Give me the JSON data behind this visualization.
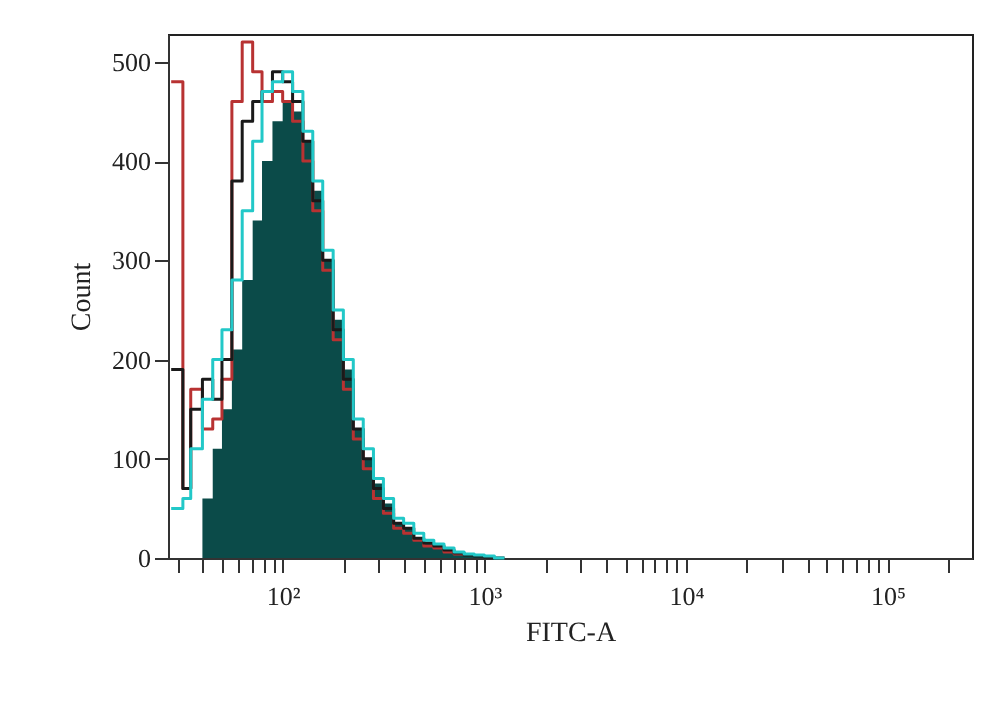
{
  "chart_data": {
    "type": "step",
    "xlabel": "FITC-A",
    "ylabel": "Count",
    "log": "x",
    "xlim": [
      27,
      262144
    ],
    "ylim": [
      0,
      528
    ],
    "xticks": [
      {
        "value": 30,
        "label": null
      },
      {
        "value": 40,
        "label": null
      },
      {
        "value": 50,
        "label": null
      },
      {
        "value": 60,
        "label": null
      },
      {
        "value": 70,
        "label": null
      },
      {
        "value": 80,
        "label": null
      },
      {
        "value": 90,
        "label": null
      },
      {
        "value": 100,
        "label": "10²"
      },
      {
        "value": 200,
        "label": null
      },
      {
        "value": 300,
        "label": null
      },
      {
        "value": 400,
        "label": null
      },
      {
        "value": 500,
        "label": null
      },
      {
        "value": 600,
        "label": null
      },
      {
        "value": 700,
        "label": null
      },
      {
        "value": 800,
        "label": null
      },
      {
        "value": 900,
        "label": null
      },
      {
        "value": 1000,
        "label": "10³"
      },
      {
        "value": 2000,
        "label": null
      },
      {
        "value": 3000,
        "label": null
      },
      {
        "value": 4000,
        "label": null
      },
      {
        "value": 5000,
        "label": null
      },
      {
        "value": 6000,
        "label": null
      },
      {
        "value": 7000,
        "label": null
      },
      {
        "value": 8000,
        "label": null
      },
      {
        "value": 9000,
        "label": null
      },
      {
        "value": 10000,
        "label": "10⁴"
      },
      {
        "value": 20000,
        "label": null
      },
      {
        "value": 30000,
        "label": null
      },
      {
        "value": 40000,
        "label": null
      },
      {
        "value": 50000,
        "label": null
      },
      {
        "value": 60000,
        "label": null
      },
      {
        "value": 70000,
        "label": null
      },
      {
        "value": 80000,
        "label": null
      },
      {
        "value": 90000,
        "label": null
      },
      {
        "value": 100000,
        "label": "10⁵"
      },
      {
        "value": 200000,
        "label": null
      }
    ],
    "yticks": [
      0,
      100,
      200,
      300,
      400,
      500
    ],
    "x": [
      28,
      32,
      35,
      40,
      45,
      50,
      56,
      63,
      71,
      79,
      89,
      100,
      112,
      126,
      141,
      158,
      178,
      200,
      224,
      251,
      282,
      316,
      355,
      398,
      447,
      501,
      562,
      631,
      708,
      794,
      891,
      1000,
      1122,
      1259
    ],
    "series": [
      {
        "type": "area",
        "color": "#0b4b49",
        "values": [
          0,
          0,
          0,
          60,
          110,
          150,
          210,
          280,
          340,
          400,
          440,
          460,
          450,
          420,
          370,
          300,
          240,
          190,
          130,
          100,
          75,
          55,
          35,
          30,
          20,
          15,
          12,
          8,
          5,
          3,
          2,
          1,
          0,
          0
        ]
      },
      {
        "color": "#b83232",
        "values": [
          480,
          70,
          170,
          130,
          140,
          180,
          460,
          520,
          490,
          460,
          470,
          460,
          440,
          400,
          350,
          290,
          220,
          170,
          120,
          90,
          60,
          45,
          30,
          25,
          18,
          12,
          10,
          6,
          4,
          2,
          null,
          null,
          null,
          null
        ]
      },
      {
        "color": "#1a1a1a",
        "values": [
          190,
          70,
          150,
          180,
          160,
          200,
          380,
          440,
          460,
          470,
          490,
          480,
          460,
          420,
          360,
          300,
          230,
          180,
          130,
          100,
          70,
          50,
          35,
          30,
          20,
          15,
          12,
          8,
          5,
          3,
          2,
          1,
          0,
          0
        ]
      },
      {
        "color": "#22c8c8",
        "values": [
          50,
          60,
          110,
          160,
          200,
          230,
          280,
          350,
          420,
          470,
          480,
          490,
          470,
          430,
          380,
          310,
          250,
          200,
          140,
          110,
          80,
          60,
          40,
          35,
          25,
          18,
          14,
          10,
          6,
          4,
          3,
          2,
          0,
          0
        ]
      }
    ]
  }
}
